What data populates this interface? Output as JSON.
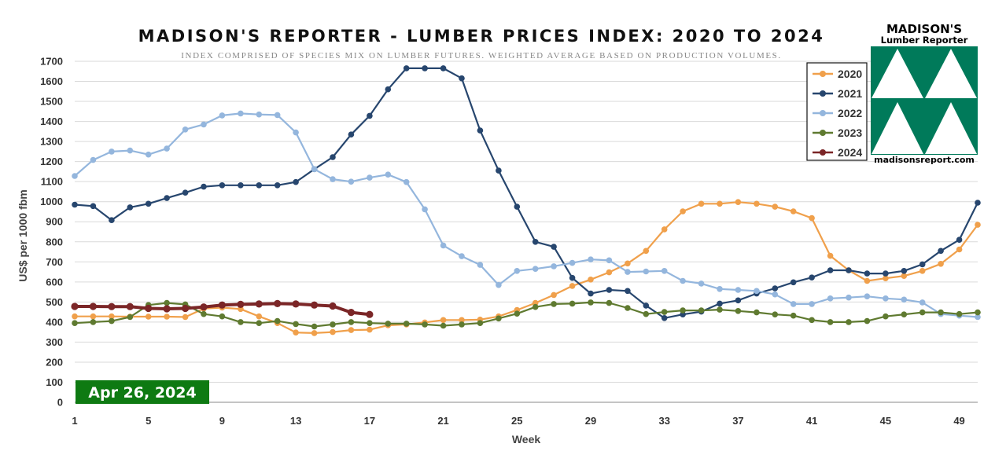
{
  "chart_data": {
    "type": "line",
    "title": "MADISON'S REPORTER - LUMBER PRICES INDEX: 2020 TO 2024",
    "subtitle": "INDEX COMPRISED OF SPECIES MIX ON LUMBER FUTURES. WEIGHTED AVERAGE BASED ON PRODUCTION VOLUMES.",
    "xlabel": "Week",
    "ylabel": "US$ per 1000 fbm",
    "xlim": [
      1,
      50
    ],
    "ylim": [
      0,
      1700
    ],
    "x_ticks": [
      1,
      5,
      9,
      13,
      17,
      21,
      25,
      29,
      33,
      37,
      41,
      45,
      49
    ],
    "y_ticks": [
      0,
      100,
      200,
      300,
      400,
      500,
      600,
      700,
      800,
      900,
      1000,
      1100,
      1200,
      1300,
      1400,
      1500,
      1600,
      1700
    ],
    "grid": "horizontal",
    "legend_position": "top-right",
    "annotation": "Apr 26, 2024",
    "series": [
      {
        "name": "2020",
        "color": "#F0A04B",
        "values": [
          428,
          428,
          428,
          427,
          427,
          427,
          425,
          467,
          472,
          465,
          428,
          395,
          348,
          345,
          350,
          360,
          362,
          384,
          388,
          398,
          410,
          410,
          412,
          428,
          460,
          495,
          535,
          580,
          612,
          648,
          692,
          755,
          862,
          952,
          990,
          990,
          998,
          990,
          975,
          952,
          918,
          730,
          658,
          605,
          618,
          630,
          655,
          690,
          762,
          885
        ]
      },
      {
        "name": "2021",
        "color": "#27466E",
        "values": [
          985,
          978,
          908,
          972,
          990,
          1018,
          1045,
          1075,
          1082,
          1082,
          1082,
          1082,
          1098,
          1162,
          1222,
          1335,
          1428,
          1560,
          1665,
          1665,
          1665,
          1615,
          1355,
          1155,
          975,
          800,
          775,
          620,
          542,
          560,
          555,
          482,
          420,
          438,
          452,
          492,
          508,
          542,
          568,
          598,
          622,
          658,
          658,
          642,
          642,
          655,
          688,
          755,
          810,
          995
        ]
      },
      {
        "name": "2022",
        "color": "#94B6DD",
        "values": [
          1128,
          1208,
          1250,
          1255,
          1235,
          1265,
          1360,
          1385,
          1430,
          1440,
          1435,
          1432,
          1345,
          1162,
          1112,
          1100,
          1120,
          1135,
          1098,
          962,
          782,
          728,
          685,
          585,
          655,
          665,
          678,
          695,
          712,
          708,
          650,
          652,
          655,
          605,
          592,
          565,
          560,
          555,
          538,
          490,
          490,
          518,
          522,
          528,
          518,
          512,
          498,
          440,
          432,
          425
        ]
      },
      {
        "name": "2023",
        "color": "#5F7A30",
        "values": [
          395,
          400,
          405,
          425,
          485,
          495,
          488,
          440,
          428,
          400,
          395,
          405,
          390,
          378,
          388,
          400,
          395,
          392,
          392,
          388,
          382,
          388,
          395,
          418,
          442,
          475,
          490,
          492,
          498,
          495,
          470,
          440,
          450,
          458,
          458,
          462,
          455,
          448,
          438,
          432,
          410,
          400,
          400,
          405,
          428,
          438,
          448,
          448,
          440,
          448
        ]
      },
      {
        "name": "2024",
        "color": "#7B2627",
        "values": [
          478,
          478,
          477,
          477,
          468,
          466,
          468,
          475,
          485,
          488,
          490,
          492,
          490,
          485,
          480,
          448,
          438
        ]
      }
    ]
  },
  "legend": {
    "items": [
      {
        "label": "2020",
        "color": "#F0A04B"
      },
      {
        "label": "2021",
        "color": "#27466E"
      },
      {
        "label": "2022",
        "color": "#94B6DD"
      },
      {
        "label": "2023",
        "color": "#5F7A30"
      },
      {
        "label": "2024",
        "color": "#7B2627"
      }
    ]
  },
  "logo": {
    "name": "MADISON'S",
    "subtitle": "Lumber Reporter",
    "url": "madisonsreport.com",
    "color": "#007A5A"
  },
  "date_badge": {
    "text": "Apr 26, 2024",
    "color": "#0E7A12"
  }
}
